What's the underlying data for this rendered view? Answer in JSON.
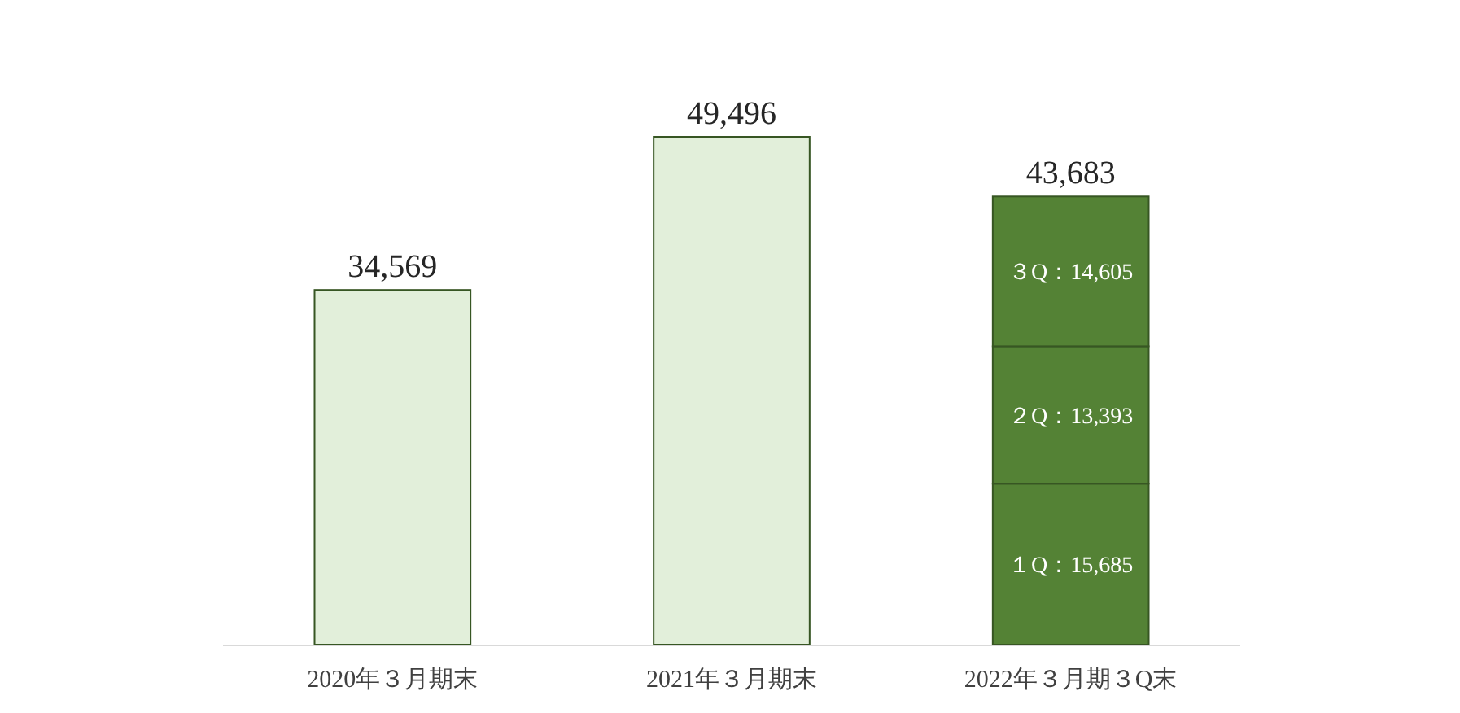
{
  "chart_data": {
    "type": "bar",
    "stacked": true,
    "categories": [
      "2020年３月期末",
      "2021年３月期末",
      "2022年３月期３Q末"
    ],
    "series": [
      {
        "color": "#e2efda",
        "values": [
          34569,
          49496,
          null
        ]
      },
      {
        "color": "#548235",
        "values": [
          null,
          null,
          15685
        ],
        "value_labels": [
          null,
          null,
          "１Q：15,685"
        ]
      },
      {
        "color": "#548235",
        "values": [
          null,
          null,
          13393
        ],
        "value_labels": [
          null,
          null,
          "２Q：13,393"
        ]
      },
      {
        "color": "#548235",
        "values": [
          null,
          null,
          14605
        ],
        "value_labels": [
          null,
          null,
          "３Q：14,605"
        ]
      }
    ],
    "totals": [
      "34,569",
      "49,496",
      "43,683"
    ]
  }
}
